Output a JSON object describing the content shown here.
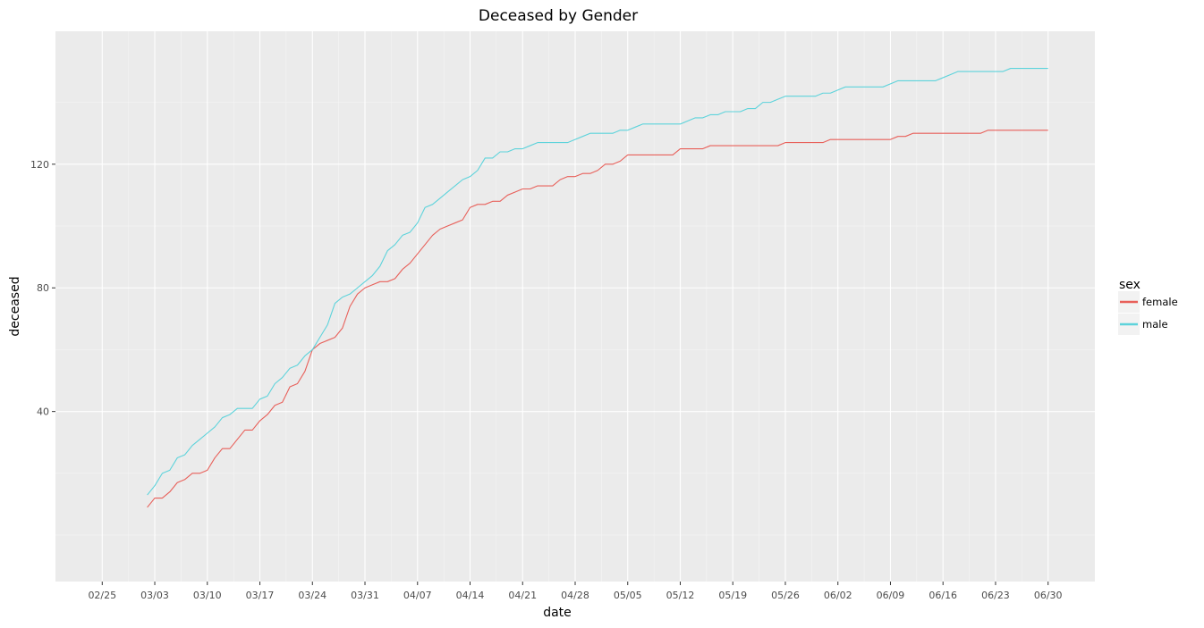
{
  "chart_data": {
    "type": "line",
    "title": "Deceased by Gender",
    "xlabel": "date",
    "ylabel": "deceased",
    "x_start": "02/25",
    "xlim": [
      0,
      126
    ],
    "ylim": [
      -7,
      155
    ],
    "x_ticks": [
      {
        "label": "02/25",
        "day": 0
      },
      {
        "label": "03/03",
        "day": 7
      },
      {
        "label": "03/10",
        "day": 14
      },
      {
        "label": "03/17",
        "day": 21
      },
      {
        "label": "03/24",
        "day": 28
      },
      {
        "label": "03/31",
        "day": 35
      },
      {
        "label": "04/07",
        "day": 42
      },
      {
        "label": "04/14",
        "day": 49
      },
      {
        "label": "04/21",
        "day": 56
      },
      {
        "label": "04/28",
        "day": 63
      },
      {
        "label": "05/05",
        "day": 70
      },
      {
        "label": "05/12",
        "day": 77
      },
      {
        "label": "05/19",
        "day": 84
      },
      {
        "label": "05/26",
        "day": 91
      },
      {
        "label": "06/02",
        "day": 98
      },
      {
        "label": "06/09",
        "day": 105
      },
      {
        "label": "06/16",
        "day": 112
      },
      {
        "label": "06/23",
        "day": 119
      },
      {
        "label": "06/30",
        "day": 126
      }
    ],
    "y_ticks": [
      40,
      80,
      120
    ],
    "legend": {
      "title": "sex",
      "position": "right"
    },
    "series": [
      {
        "name": "female",
        "color": "#E8605A",
        "points": [
          [
            6,
            9
          ],
          [
            7,
            12
          ],
          [
            8,
            12
          ],
          [
            9,
            14
          ],
          [
            10,
            17
          ],
          [
            11,
            18
          ],
          [
            12,
            20
          ],
          [
            13,
            20
          ],
          [
            14,
            21
          ],
          [
            15,
            25
          ],
          [
            16,
            28
          ],
          [
            17,
            28
          ],
          [
            18,
            31
          ],
          [
            19,
            34
          ],
          [
            20,
            34
          ],
          [
            21,
            37
          ],
          [
            22,
            39
          ],
          [
            23,
            42
          ],
          [
            24,
            43
          ],
          [
            25,
            48
          ],
          [
            26,
            49
          ],
          [
            27,
            53
          ],
          [
            28,
            60
          ],
          [
            29,
            62
          ],
          [
            30,
            63
          ],
          [
            31,
            64
          ],
          [
            32,
            67
          ],
          [
            33,
            74
          ],
          [
            34,
            78
          ],
          [
            35,
            80
          ],
          [
            36,
            81
          ],
          [
            37,
            82
          ],
          [
            38,
            82
          ],
          [
            39,
            83
          ],
          [
            40,
            86
          ],
          [
            41,
            88
          ],
          [
            42,
            91
          ],
          [
            43,
            94
          ],
          [
            44,
            97
          ],
          [
            45,
            99
          ],
          [
            46,
            100
          ],
          [
            47,
            101
          ],
          [
            48,
            102
          ],
          [
            49,
            106
          ],
          [
            50,
            107
          ],
          [
            51,
            107
          ],
          [
            52,
            108
          ],
          [
            53,
            108
          ],
          [
            54,
            110
          ],
          [
            55,
            111
          ],
          [
            56,
            112
          ],
          [
            57,
            112
          ],
          [
            58,
            113
          ],
          [
            59,
            113
          ],
          [
            60,
            113
          ],
          [
            61,
            115
          ],
          [
            62,
            116
          ],
          [
            63,
            116
          ],
          [
            64,
            117
          ],
          [
            65,
            117
          ],
          [
            66,
            118
          ],
          [
            67,
            120
          ],
          [
            68,
            120
          ],
          [
            69,
            121
          ],
          [
            70,
            123
          ],
          [
            71,
            123
          ],
          [
            72,
            123
          ],
          [
            73,
            123
          ],
          [
            74,
            123
          ],
          [
            75,
            123
          ],
          [
            76,
            123
          ],
          [
            77,
            125
          ],
          [
            78,
            125
          ],
          [
            79,
            125
          ],
          [
            80,
            125
          ],
          [
            81,
            126
          ],
          [
            82,
            126
          ],
          [
            90,
            126
          ],
          [
            91,
            127
          ],
          [
            96,
            127
          ],
          [
            97,
            128
          ],
          [
            105,
            128
          ],
          [
            106,
            129
          ],
          [
            107,
            129
          ],
          [
            108,
            130
          ],
          [
            117,
            130
          ],
          [
            118,
            131
          ],
          [
            126,
            131
          ]
        ]
      },
      {
        "name": "male",
        "color": "#5DD3DB",
        "points": [
          [
            6,
            13
          ],
          [
            7,
            16
          ],
          [
            8,
            20
          ],
          [
            9,
            21
          ],
          [
            10,
            25
          ],
          [
            11,
            26
          ],
          [
            12,
            29
          ],
          [
            13,
            31
          ],
          [
            14,
            33
          ],
          [
            15,
            35
          ],
          [
            16,
            38
          ],
          [
            17,
            39
          ],
          [
            18,
            41
          ],
          [
            19,
            41
          ],
          [
            20,
            41
          ],
          [
            21,
            44
          ],
          [
            22,
            45
          ],
          [
            23,
            49
          ],
          [
            24,
            51
          ],
          [
            25,
            54
          ],
          [
            26,
            55
          ],
          [
            27,
            58
          ],
          [
            28,
            60
          ],
          [
            29,
            64
          ],
          [
            30,
            68
          ],
          [
            31,
            75
          ],
          [
            32,
            77
          ],
          [
            33,
            78
          ],
          [
            34,
            80
          ],
          [
            35,
            82
          ],
          [
            36,
            84
          ],
          [
            37,
            87
          ],
          [
            38,
            92
          ],
          [
            39,
            94
          ],
          [
            40,
            97
          ],
          [
            41,
            98
          ],
          [
            42,
            101
          ],
          [
            43,
            106
          ],
          [
            44,
            107
          ],
          [
            45,
            109
          ],
          [
            46,
            111
          ],
          [
            47,
            113
          ],
          [
            48,
            115
          ],
          [
            49,
            116
          ],
          [
            50,
            118
          ],
          [
            51,
            122
          ],
          [
            52,
            122
          ],
          [
            53,
            124
          ],
          [
            54,
            124
          ],
          [
            55,
            125
          ],
          [
            56,
            125
          ],
          [
            57,
            126
          ],
          [
            58,
            127
          ],
          [
            59,
            127
          ],
          [
            60,
            127
          ],
          [
            61,
            127
          ],
          [
            62,
            127
          ],
          [
            63,
            128
          ],
          [
            64,
            129
          ],
          [
            65,
            130
          ],
          [
            66,
            130
          ],
          [
            67,
            130
          ],
          [
            68,
            130
          ],
          [
            69,
            131
          ],
          [
            70,
            131
          ],
          [
            71,
            132
          ],
          [
            72,
            133
          ],
          [
            73,
            133
          ],
          [
            74,
            133
          ],
          [
            75,
            133
          ],
          [
            76,
            133
          ],
          [
            77,
            133
          ],
          [
            78,
            134
          ],
          [
            79,
            135
          ],
          [
            80,
            135
          ],
          [
            81,
            136
          ],
          [
            82,
            136
          ],
          [
            83,
            137
          ],
          [
            84,
            137
          ],
          [
            85,
            137
          ],
          [
            86,
            138
          ],
          [
            87,
            138
          ],
          [
            88,
            140
          ],
          [
            89,
            140
          ],
          [
            90,
            141
          ],
          [
            91,
            142
          ],
          [
            92,
            142
          ],
          [
            93,
            142
          ],
          [
            94,
            142
          ],
          [
            95,
            142
          ],
          [
            96,
            143
          ],
          [
            97,
            143
          ],
          [
            98,
            144
          ],
          [
            99,
            145
          ],
          [
            100,
            145
          ],
          [
            101,
            145
          ],
          [
            102,
            145
          ],
          [
            103,
            145
          ],
          [
            104,
            145
          ],
          [
            105,
            146
          ],
          [
            106,
            147
          ],
          [
            107,
            147
          ],
          [
            108,
            147
          ],
          [
            109,
            147
          ],
          [
            110,
            147
          ],
          [
            111,
            147
          ],
          [
            112,
            148
          ],
          [
            113,
            149
          ],
          [
            114,
            150
          ],
          [
            115,
            150
          ],
          [
            116,
            150
          ],
          [
            117,
            150
          ],
          [
            118,
            150
          ],
          [
            119,
            150
          ],
          [
            120,
            150
          ],
          [
            121,
            151
          ],
          [
            122,
            151
          ],
          [
            123,
            151
          ],
          [
            124,
            151
          ],
          [
            125,
            151
          ],
          [
            126,
            151
          ]
        ]
      }
    ]
  }
}
